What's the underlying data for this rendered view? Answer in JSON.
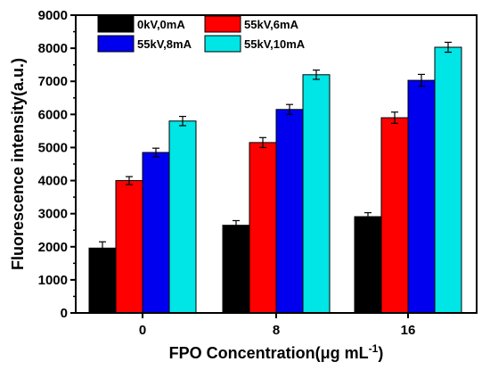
{
  "chart_data": {
    "type": "bar",
    "categories": [
      "0",
      "8",
      "16"
    ],
    "series": [
      {
        "name": "0kV,0mA",
        "color": "#000000",
        "values": [
          1960,
          2650,
          2910
        ],
        "errors": [
          190,
          140,
          120
        ]
      },
      {
        "name": "55kV,6mA",
        "color": "#ff0000",
        "values": [
          4000,
          5150,
          5900
        ],
        "errors": [
          120,
          150,
          170
        ]
      },
      {
        "name": "55kV,8mA",
        "color": "#0000ee",
        "values": [
          4850,
          6150,
          7030
        ],
        "errors": [
          130,
          150,
          180
        ]
      },
      {
        "name": "55kV,10mA",
        "color": "#00e5e5",
        "values": [
          5800,
          7200,
          8030
        ],
        "errors": [
          140,
          140,
          150
        ]
      }
    ],
    "ylim": [
      0,
      9000
    ],
    "yticks": [
      0,
      1000,
      2000,
      3000,
      4000,
      5000,
      6000,
      7000,
      8000,
      9000
    ],
    "ylabel": "Fluorescence intensity(a.u.)",
    "xlabel_main": "FPO Concentration(μg mL",
    "xlabel_sup": "-1",
    "xlabel_end": ")",
    "legend_position": "top-left",
    "grid": false
  }
}
